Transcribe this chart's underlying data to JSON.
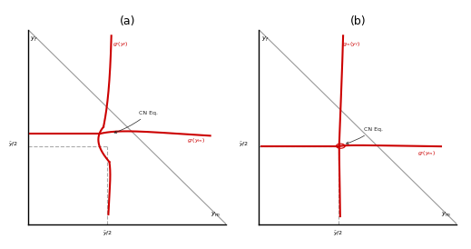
{
  "title_a": "(a)",
  "title_b": "(b)",
  "red_color": "#cc0000",
  "gray_color": "#999999",
  "dashed_color": "#aaaaaa",
  "bg_color": "#ffffff",
  "kink": 0.4,
  "cn_eq_label": "CN Eq.",
  "label_gf_a": "$g_f(y_f)$",
  "label_gm_a": "$g_f(y_m)$",
  "label_gf_b": "$g_m(y_f)$",
  "label_gm_b": "$g_f(y_m)$"
}
